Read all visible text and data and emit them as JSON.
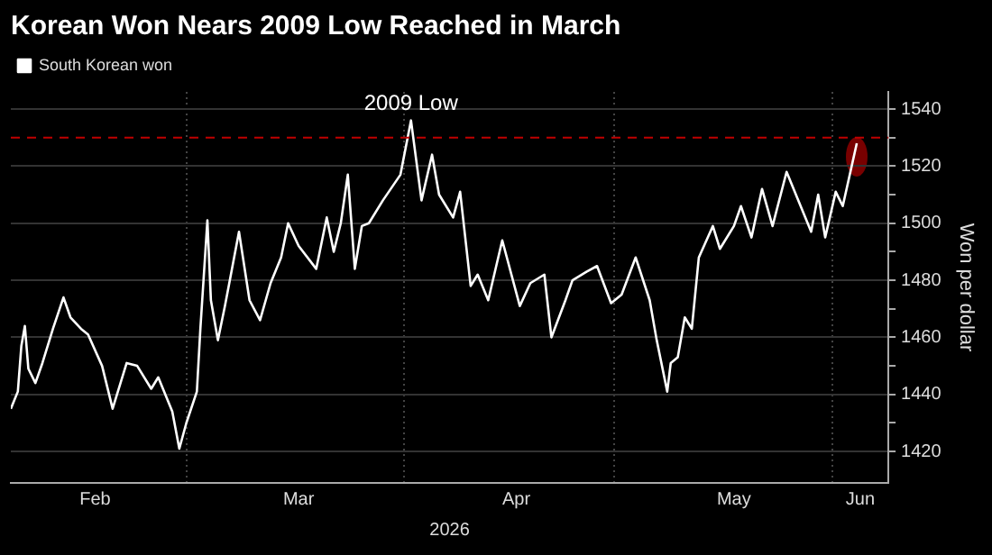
{
  "chart_data": {
    "type": "line",
    "title": "Korean Won Nears 2009 Low Reached in March",
    "xlabel": "2026",
    "ylabel": "Won per dollar",
    "x": [
      "2026-02-04",
      "2026-02-05",
      "2026-02-05T12:00",
      "2026-02-06",
      "2026-02-06T12:00",
      "2026-02-07T12:00",
      "2026-02-08T12:00",
      "2026-02-10",
      "2026-02-11T12:00",
      "2026-02-12T12:00",
      "2026-02-14",
      "2026-02-15",
      "2026-02-17",
      "2026-02-18T12:00",
      "2026-02-20T12:00",
      "2026-02-22",
      "2026-02-24",
      "2026-02-25",
      "2026-02-27",
      "2026-02-28",
      "2026-03-01",
      "2026-03-02T12:00",
      "2026-03-03",
      "2026-03-04",
      "2026-03-04T12:00",
      "2026-03-05T12:00",
      "2026-03-06T12:00",
      "2026-03-07T12:00",
      "2026-03-08T12:00",
      "2026-03-10",
      "2026-03-11T12:00",
      "2026-03-13",
      "2026-03-14T12:00",
      "2026-03-15T12:00",
      "2026-03-17",
      "2026-03-19T12:00",
      "2026-03-21",
      "2026-03-22",
      "2026-03-23",
      "2026-03-24",
      "2026-03-25",
      "2026-03-26",
      "2026-03-27",
      "2026-03-29",
      "2026-03-31T12:00",
      "2026-04-02",
      "2026-04-03T12:00",
      "2026-04-05",
      "2026-04-06",
      "2026-04-08",
      "2026-04-09",
      "2026-04-10T12:00",
      "2026-04-11T12:00",
      "2026-04-13",
      "2026-04-15",
      "2026-04-17T12:00",
      "2026-04-19",
      "2026-04-21",
      "2026-04-22",
      "2026-04-24",
      "2026-04-25",
      "2026-04-27",
      "2026-04-28T12:00",
      "2026-04-30T12:00",
      "2026-05-02",
      "2026-05-04",
      "2026-05-06",
      "2026-05-07",
      "2026-05-08T12:00",
      "2026-05-09",
      "2026-05-10",
      "2026-05-11",
      "2026-05-12",
      "2026-05-13",
      "2026-05-15",
      "2026-05-16",
      "2026-05-18",
      "2026-05-19",
      "2026-05-20T12:00",
      "2026-05-22",
      "2026-05-23T12:00",
      "2026-05-25T12:00",
      "2026-05-27T12:00",
      "2026-05-29",
      "2026-05-30",
      "2026-05-31",
      "2026-06-01T12:00",
      "2026-06-02T12:00",
      "2026-06-03T12:00",
      "2026-06-04T12:00"
    ],
    "series": [
      {
        "name": "South Korean won",
        "color": "#ffffff",
        "values": [
          1435,
          1441,
          1457,
          1464,
          1449,
          1444,
          1451,
          1463,
          1474,
          1467,
          1463,
          1461,
          1450,
          1435,
          1451,
          1450,
          1442,
          1446,
          1434,
          1421,
          1430,
          1441,
          1463,
          1501,
          1473,
          1459,
          1471,
          1484,
          1497,
          1473,
          1466,
          1479,
          1488,
          1500,
          1492,
          1484,
          1502,
          1490,
          1500,
          1517,
          1484,
          1499,
          1500,
          1508,
          1517,
          1536,
          1508,
          1524,
          1510,
          1502,
          1511,
          1478,
          1482,
          1473,
          1494,
          1471,
          1479,
          1482,
          1460,
          1473,
          1480,
          1483,
          1485,
          1472,
          1475,
          1488,
          1473,
          1459,
          1441,
          1451,
          1453,
          1467,
          1463,
          1488,
          1499,
          1491,
          1499,
          1506,
          1495,
          1512,
          1499,
          1518,
          1506,
          1497,
          1510,
          1495,
          1511,
          1506,
          1517,
          1528
        ]
      }
    ],
    "xlim": [
      "2026-02-04",
      "2026-06-09"
    ],
    "xticks": [
      {
        "value": "2026-02-16",
        "label": "Feb"
      },
      {
        "value": "2026-03-01",
        "label": null
      },
      {
        "value": "2026-03-17",
        "label": "Mar"
      },
      {
        "value": "2026-04-01",
        "label": null
      },
      {
        "value": "2026-04-17",
        "label": "Apr"
      },
      {
        "value": "2026-05-01",
        "label": null
      },
      {
        "value": "2026-05-18",
        "label": "May"
      },
      {
        "value": "2026-06-01",
        "label": null
      },
      {
        "value": "2026-06-05",
        "label": "Jun"
      }
    ],
    "ylim": [
      1409,
      1546
    ],
    "yticks": [
      1420,
      {
        "value": 1430,
        "label": null
      },
      1440,
      {
        "value": 1450,
        "label": null
      },
      1460,
      {
        "value": 1470,
        "label": null
      },
      1480,
      {
        "value": 1490,
        "label": null
      },
      1500,
      {
        "value": 1510,
        "label": null
      },
      1520,
      {
        "value": 1530,
        "label": null
      },
      1540
    ],
    "ref_lines": [
      {
        "axis": "y",
        "value": 1530,
        "label": "2009 Low",
        "color": "#c00000",
        "line_style": "dashed"
      }
    ],
    "grid": true,
    "legend": "top left",
    "marker": "none",
    "line_style": "solid"
  }
}
